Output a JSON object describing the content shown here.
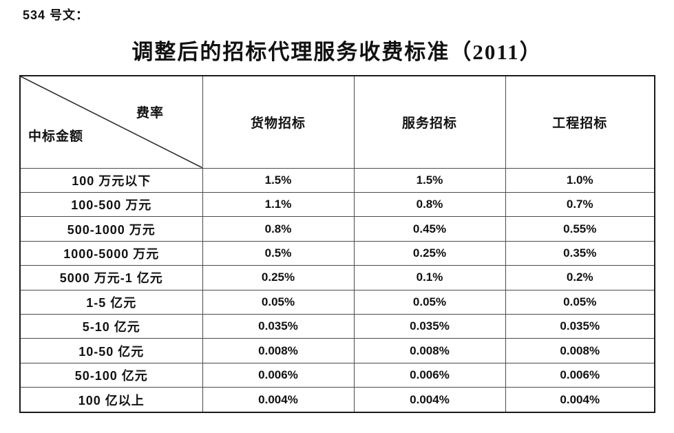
{
  "doc_label": "534 号文：",
  "title": "调整后的招标代理服务收费标准（2011）",
  "table": {
    "corner_top_right": "费率",
    "corner_bottom_left": "中标金额",
    "columns": [
      "货物招标",
      "服务招标",
      "工程招标"
    ],
    "rows": [
      {
        "label": "100 万元以下",
        "values": [
          "1.5%",
          "1.5%",
          "1.0%"
        ]
      },
      {
        "label": "100-500 万元",
        "values": [
          "1.1%",
          "0.8%",
          "0.7%"
        ]
      },
      {
        "label": "500-1000 万元",
        "values": [
          "0.8%",
          "0.45%",
          "0.55%"
        ]
      },
      {
        "label": "1000-5000 万元",
        "values": [
          "0.5%",
          "0.25%",
          "0.35%"
        ]
      },
      {
        "label": "5000 万元-1 亿元",
        "values": [
          "0.25%",
          "0.1%",
          "0.2%"
        ]
      },
      {
        "label": "1-5 亿元",
        "values": [
          "0.05%",
          "0.05%",
          "0.05%"
        ]
      },
      {
        "label": "5-10 亿元",
        "values": [
          "0.035%",
          "0.035%",
          "0.035%"
        ]
      },
      {
        "label": "10-50 亿元",
        "values": [
          "0.008%",
          "0.008%",
          "0.008%"
        ]
      },
      {
        "label": "50-100 亿元",
        "values": [
          "0.006%",
          "0.006%",
          "0.006%"
        ]
      },
      {
        "label": "100 亿以上",
        "values": [
          "0.004%",
          "0.004%",
          "0.004%"
        ]
      }
    ]
  },
  "colors": {
    "text": "#111111",
    "border_outer": "#1a1a1a",
    "border_inner": "#4a4a4a",
    "background": "#ffffff"
  }
}
